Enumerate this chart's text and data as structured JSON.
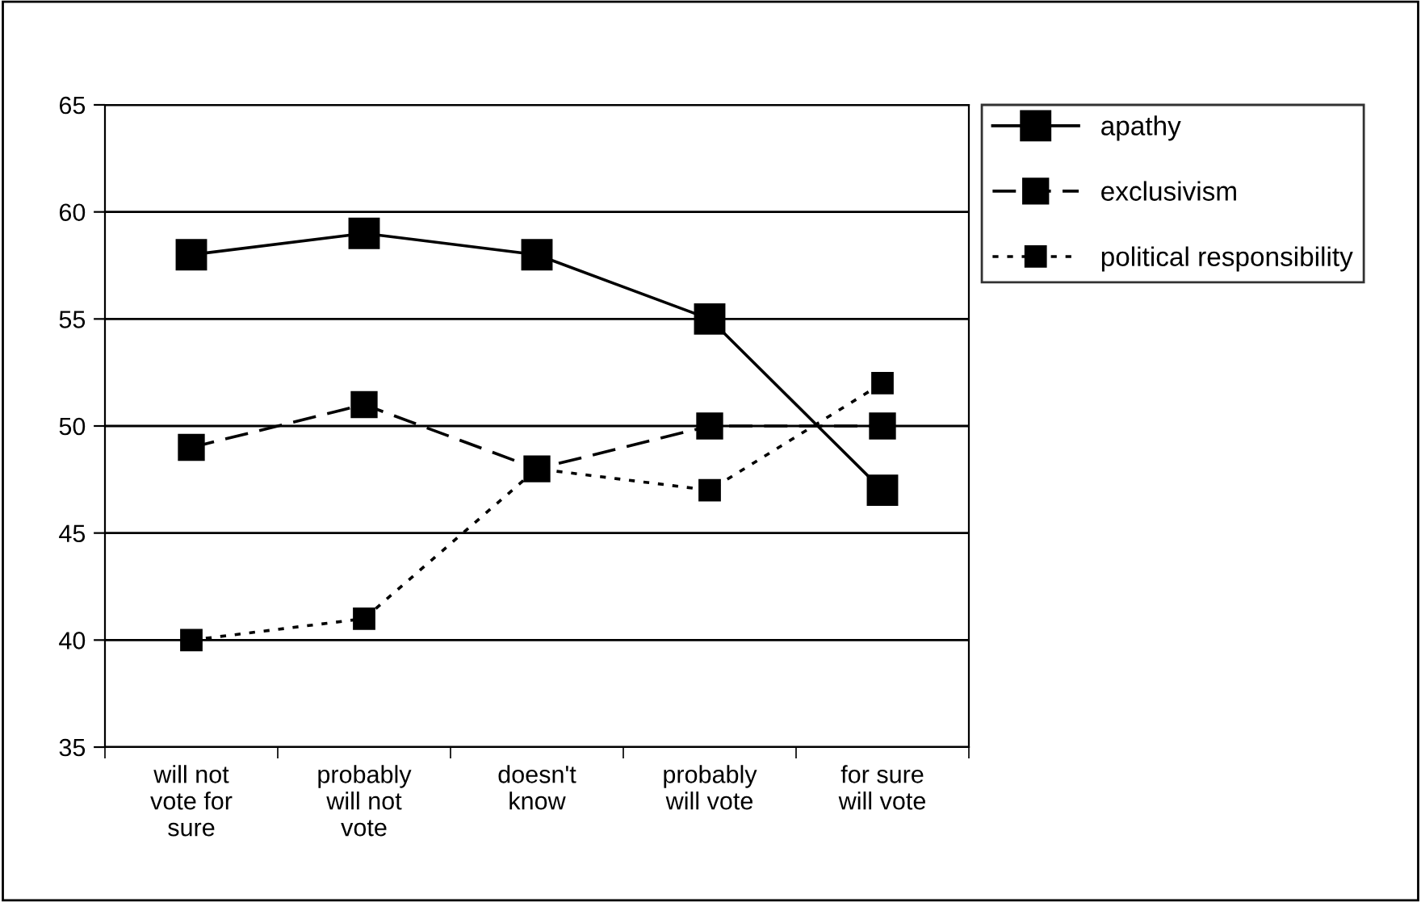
{
  "chart_data": {
    "type": "line",
    "categories": [
      "will not\nvote for\nsure",
      "probably\nwill not\nvote",
      "doesn't\nknow",
      "probably\nwill vote",
      "for sure\nwill vote"
    ],
    "series": [
      {
        "name": "apathy",
        "color": "#000000",
        "line_style": "solid",
        "values": [
          58,
          59,
          58,
          55,
          47
        ]
      },
      {
        "name": "exclusivism",
        "color": "#000000",
        "line_style": "dashed",
        "values": [
          49,
          51,
          48,
          50,
          50
        ]
      },
      {
        "name": "political responsibility",
        "color": "#000000",
        "line_style": "dotted",
        "values": [
          40,
          41,
          48,
          47,
          52
        ]
      }
    ],
    "ylim": [
      35,
      65
    ],
    "yticks": [
      35,
      40,
      45,
      50,
      55,
      60,
      65
    ],
    "grid": "y",
    "legend": "right",
    "marker": "square"
  }
}
